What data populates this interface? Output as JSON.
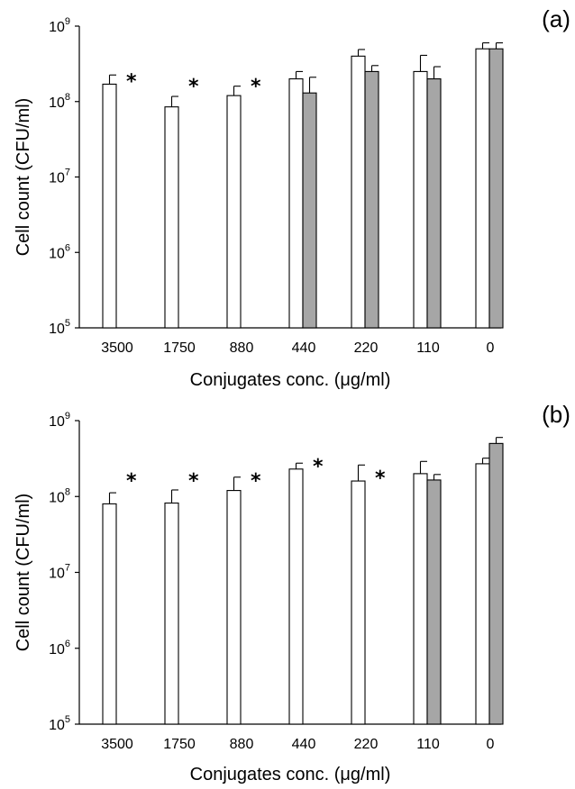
{
  "chart_data": [
    {
      "type": "bar",
      "panel_label": "(a)",
      "xlabel": "Conjugates conc. (μg/ml)",
      "ylabel": "Cell count (CFU/ml)",
      "yscale": "log",
      "ylim": [
        100000,
        1000000000
      ],
      "ytick_values": [
        100000,
        1000000,
        10000000,
        100000000,
        1000000000
      ],
      "ytick_labels": [
        {
          "base": "10",
          "exp": "5"
        },
        {
          "base": "10",
          "exp": "6"
        },
        {
          "base": "10",
          "exp": "7"
        },
        {
          "base": "10",
          "exp": "8"
        },
        {
          "base": "10",
          "exp": "9"
        }
      ],
      "categories": [
        "3500",
        "1750",
        "880",
        "440",
        "220",
        "110",
        "0"
      ],
      "series": [
        {
          "color": "#ffffff",
          "values": [
            170000000,
            85000000,
            120000000,
            200000000,
            400000000,
            250000000,
            500000000
          ],
          "errors": [
            55000000,
            32000000,
            40000000,
            50000000,
            90000000,
            160000000,
            100000000
          ]
        },
        {
          "color": "#a6a6a6",
          "values": [
            null,
            null,
            null,
            130000000,
            250000000,
            200000000,
            500000000
          ],
          "errors": [
            null,
            null,
            null,
            80000000,
            50000000,
            90000000,
            100000000
          ]
        }
      ],
      "markers": [
        {
          "category": "3500",
          "text": "*"
        },
        {
          "category": "1750",
          "text": "*"
        },
        {
          "category": "880",
          "text": "*"
        }
      ]
    },
    {
      "type": "bar",
      "panel_label": "(b)",
      "xlabel": "Conjugates conc. (μg/ml)",
      "ylabel": "Cell count (CFU/ml)",
      "yscale": "log",
      "ylim": [
        100000,
        1000000000
      ],
      "ytick_values": [
        100000,
        1000000,
        10000000,
        100000000,
        1000000000
      ],
      "ytick_labels": [
        {
          "base": "10",
          "exp": "5"
        },
        {
          "base": "10",
          "exp": "6"
        },
        {
          "base": "10",
          "exp": "7"
        },
        {
          "base": "10",
          "exp": "8"
        },
        {
          "base": "10",
          "exp": "9"
        }
      ],
      "categories": [
        "3500",
        "1750",
        "880",
        "440",
        "220",
        "110",
        "0"
      ],
      "series": [
        {
          "color": "#ffffff",
          "values": [
            80000000,
            82000000,
            120000000,
            230000000,
            160000000,
            200000000,
            270000000
          ],
          "errors": [
            32000000,
            40000000,
            60000000,
            45000000,
            100000000,
            90000000,
            50000000
          ]
        },
        {
          "color": "#a6a6a6",
          "values": [
            null,
            null,
            null,
            null,
            null,
            165000000,
            500000000
          ],
          "errors": [
            null,
            null,
            null,
            null,
            null,
            30000000,
            100000000
          ]
        }
      ],
      "markers": [
        {
          "category": "3500",
          "text": "*"
        },
        {
          "category": "1750",
          "text": "*"
        },
        {
          "category": "880",
          "text": "*"
        },
        {
          "category": "440",
          "text": "*"
        },
        {
          "category": "220",
          "text": "*"
        }
      ]
    }
  ]
}
